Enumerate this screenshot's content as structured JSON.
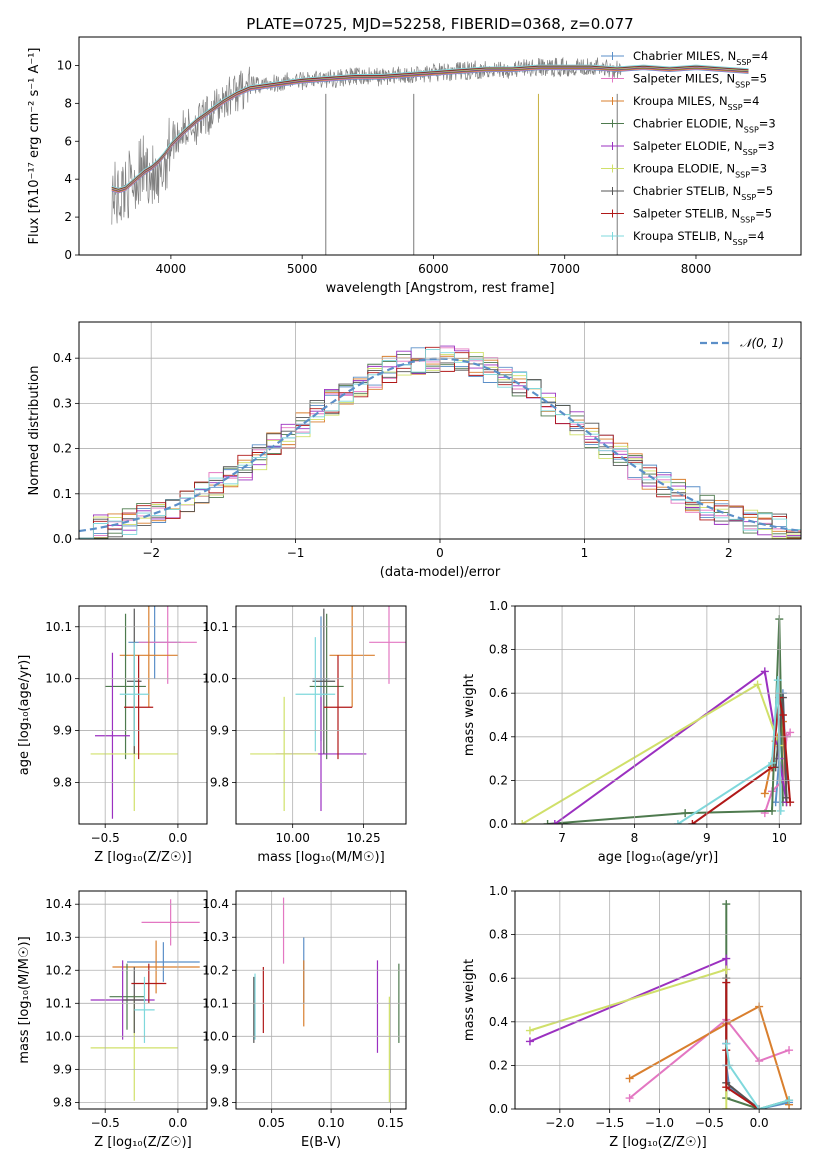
{
  "figure_title": "PLATE=0725, MJD=52258, FIBERID=0368, z=0.077",
  "model_colors": [
    "#5b8fc8",
    "#e377c2",
    "#d97f2e",
    "#4e7a4e",
    "#9b30c0",
    "#d0e06a",
    "#555555",
    "#b01818",
    "#7fd8dc"
  ],
  "models": [
    {
      "name": "Chabrier MILES",
      "nssp": "4"
    },
    {
      "name": "Salpeter MILES",
      "nssp": "5"
    },
    {
      "name": "Kroupa MILES",
      "nssp": "4"
    },
    {
      "name": "Chabrier ELODIE",
      "nssp": "3"
    },
    {
      "name": "Salpeter ELODIE",
      "nssp": "3"
    },
    {
      "name": "Kroupa ELODIE",
      "nssp": "3"
    },
    {
      "name": "Chabrier STELIB",
      "nssp": "5"
    },
    {
      "name": "Salpeter STELIB",
      "nssp": "5"
    },
    {
      "name": "Kroupa STELIB",
      "nssp": "4"
    }
  ],
  "chart_data": [
    {
      "id": "spectrum",
      "type": "line",
      "xlabel": "wavelength [Angstrom, rest frame]",
      "ylabel": "Flux [fλ10⁻¹⁷ erg cm⁻² s⁻¹ A⁻¹]",
      "xlim": [
        3300,
        8800
      ],
      "ylim": [
        0,
        11.5
      ],
      "xticks": [
        "4000",
        "5000",
        "6000",
        "7000",
        "8000"
      ],
      "yticks": [
        "0",
        "2",
        "4",
        "6",
        "8",
        "10"
      ],
      "data_color": "#808080",
      "data_x": [
        3550,
        3600,
        3650,
        3700,
        3750,
        3800,
        3850,
        3900,
        3950,
        4000,
        4100,
        4200,
        4300,
        4400,
        4500,
        4600,
        4800,
        5000,
        5200,
        5400,
        5600,
        5800,
        6000,
        6200,
        6400,
        6600,
        6800,
        7000,
        7200,
        7400,
        7600,
        7800,
        8000,
        8200,
        8400
      ],
      "data_y": [
        3.4,
        3.0,
        3.6,
        3.8,
        4.2,
        4.6,
        4.3,
        3.2,
        4.8,
        6.0,
        6.6,
        6.9,
        7.4,
        8.2,
        8.6,
        8.9,
        9.1,
        9.2,
        9.3,
        9.4,
        9.4,
        9.5,
        9.6,
        9.7,
        9.8,
        9.8,
        9.9,
        9.9,
        10.0,
        9.8,
        9.9,
        9.8,
        9.9,
        9.8,
        9.7
      ],
      "model_y": [
        3.5,
        3.4,
        3.5,
        3.8,
        4.1,
        4.4,
        4.6,
        4.9,
        5.3,
        5.8,
        6.5,
        7.1,
        7.6,
        8.1,
        8.5,
        8.8,
        9.0,
        9.2,
        9.3,
        9.4,
        9.4,
        9.5,
        9.6,
        9.7,
        9.8,
        9.8,
        9.9,
        9.9,
        9.9,
        9.8,
        9.9,
        9.8,
        9.9,
        9.8,
        9.7
      ],
      "legend_placement": "right"
    },
    {
      "id": "residuals",
      "type": "histogram",
      "xlabel": "(data-model)/error",
      "ylabel": "Normed distribution",
      "xlim": [
        -2.5,
        2.5
      ],
      "ylim": [
        0,
        0.48
      ],
      "xticks": [
        "−2",
        "−1",
        "0",
        "1",
        "2"
      ],
      "yticks": [
        "0.0",
        "0.1",
        "0.2",
        "0.3",
        "0.4"
      ],
      "reference_curve": "𝒩(0, 1)",
      "reference_color": "#5b8fc8",
      "grid": true,
      "legend_placement": "top-right"
    },
    {
      "id": "age-vs-Z",
      "type": "errorbar",
      "xlabel": "Z [log₁₀(Z/Z☉)]",
      "ylabel": "age  [log₁₀(age/yr)]",
      "xlim": [
        -0.68,
        0.2
      ],
      "ylim": [
        9.72,
        10.14
      ],
      "xticks": [
        "−0.5",
        "0.0"
      ],
      "yticks": [
        "9.8",
        "9.9",
        "10.0",
        "10.1"
      ],
      "points": [
        {
          "x": -0.16,
          "xerr": 0.18,
          "y": 10.07,
          "yerr": 0.07
        },
        {
          "x": -0.07,
          "xerr": 0.2,
          "y": 10.07,
          "yerr": 0.08
        },
        {
          "x": -0.2,
          "xerr": 0.2,
          "y": 10.045,
          "yerr": 0.1
        },
        {
          "x": -0.36,
          "xerr": 0.14,
          "y": 9.985,
          "yerr": 0.14
        },
        {
          "x": -0.45,
          "xerr": 0.12,
          "y": 9.89,
          "yerr": 0.16
        },
        {
          "x": -0.3,
          "xerr": 0.3,
          "y": 9.855,
          "yerr": 0.11
        },
        {
          "x": -0.3,
          "xerr": 0.05,
          "y": 9.995,
          "yerr": 0.14
        },
        {
          "x": -0.27,
          "xerr": 0.1,
          "y": 9.945,
          "yerr": 0.1
        },
        {
          "x": -0.3,
          "xerr": 0.1,
          "y": 9.97,
          "yerr": 0.1
        }
      ]
    },
    {
      "id": "age-vs-mass",
      "type": "errorbar",
      "xlabel": "mass [log₁₀(M/M☉)]",
      "ylabel": "",
      "xlim": [
        9.8,
        10.4
      ],
      "ylim": [
        9.72,
        10.14
      ],
      "xticks": [
        "10.00",
        "10.25"
      ],
      "yticks": [
        "9.8",
        "9.9",
        "10.0",
        "10.1"
      ],
      "points": [
        {
          "x": 10.1,
          "xerr": 0.03,
          "y": 10.0,
          "yerr": 0.12
        },
        {
          "x": 10.34,
          "xerr": 0.07,
          "y": 10.07,
          "yerr": 0.08
        },
        {
          "x": 10.21,
          "xerr": 0.08,
          "y": 10.045,
          "yerr": 0.1
        },
        {
          "x": 10.12,
          "xerr": 0.06,
          "y": 9.985,
          "yerr": 0.14
        },
        {
          "x": 10.1,
          "xerr": 0.16,
          "y": 9.855,
          "yerr": 0.11
        },
        {
          "x": 9.97,
          "xerr": 0.12,
          "y": 9.855,
          "yerr": 0.11
        },
        {
          "x": 10.11,
          "xerr": 0.04,
          "y": 9.995,
          "yerr": 0.14
        },
        {
          "x": 10.16,
          "xerr": 0.05,
          "y": 9.945,
          "yerr": 0.1
        },
        {
          "x": 10.08,
          "xerr": 0.07,
          "y": 9.97,
          "yerr": 0.11
        }
      ]
    },
    {
      "id": "weight-vs-age",
      "type": "line",
      "xlabel": "age  [log₁₀(age/yr)]",
      "ylabel": "mass weight",
      "xlim": [
        6.35,
        10.3
      ],
      "ylim": [
        0,
        1
      ],
      "xticks": [
        "7",
        "8",
        "9",
        "10"
      ],
      "yticks": [
        "0.0",
        "0.2",
        "0.4",
        "0.6",
        "0.8",
        "1.0"
      ],
      "series": [
        {
          "x": [
            9.95,
            10.0,
            10.05,
            10.1
          ],
          "y": [
            0.1,
            0.3,
            0.6,
            0.2
          ]
        },
        {
          "x": [
            9.8,
            9.9,
            10.05,
            10.1,
            10.15
          ],
          "y": [
            0.05,
            0.15,
            0.2,
            0.4,
            0.42
          ]
        },
        {
          "x": [
            9.8,
            9.95,
            10.05,
            10.1
          ],
          "y": [
            0.14,
            0.38,
            0.47,
            0.1
          ]
        },
        {
          "x": [
            6.8,
            8.7,
            9.9,
            10.0,
            10.05
          ],
          "y": [
            0.0,
            0.05,
            0.06,
            0.94,
            0.1
          ]
        },
        {
          "x": [
            6.9,
            9.8,
            10.0,
            10.1
          ],
          "y": [
            0.0,
            0.7,
            0.3,
            0.1
          ]
        },
        {
          "x": [
            6.45,
            9.7,
            10.0
          ],
          "y": [
            0.0,
            0.64,
            0.36
          ]
        },
        {
          "x": [
            9.95,
            10.05,
            10.1
          ],
          "y": [
            0.26,
            0.58,
            0.12
          ]
        },
        {
          "x": [
            8.8,
            9.9,
            10.0,
            10.05,
            10.15
          ],
          "y": [
            0.0,
            0.26,
            0.58,
            0.5,
            0.1
          ]
        },
        {
          "x": [
            8.6,
            9.9,
            9.98,
            10.02
          ],
          "y": [
            0.0,
            0.28,
            0.66,
            0.06
          ]
        }
      ]
    },
    {
      "id": "mass-vs-Z",
      "type": "errorbar",
      "xlabel": "Z [log₁₀(Z/Z☉)]",
      "ylabel": "mass [log₁₀(M/M☉)]",
      "xlim": [
        -0.68,
        0.2
      ],
      "ylim": [
        9.78,
        10.44
      ],
      "xticks": [
        "−0.5",
        "0.0"
      ],
      "yticks": [
        "9.8",
        "9.9",
        "10.0",
        "10.1",
        "10.2",
        "10.3",
        "10.4"
      ],
      "points": [
        {
          "x": -0.1,
          "xerr": 0.25,
          "y": 10.225,
          "yerr": 0.06
        },
        {
          "x": -0.05,
          "xerr": 0.2,
          "y": 10.345,
          "yerr": 0.07
        },
        {
          "x": -0.15,
          "xerr": 0.3,
          "y": 10.21,
          "yerr": 0.08
        },
        {
          "x": -0.35,
          "xerr": 0.12,
          "y": 10.12,
          "yerr": 0.1
        },
        {
          "x": -0.38,
          "xerr": 0.22,
          "y": 10.11,
          "yerr": 0.12
        },
        {
          "x": -0.3,
          "xerr": 0.3,
          "y": 9.965,
          "yerr": 0.16
        },
        {
          "x": -0.3,
          "xerr": 0.08,
          "y": 10.11,
          "yerr": 0.1
        },
        {
          "x": -0.2,
          "xerr": 0.12,
          "y": 10.16,
          "yerr": 0.06
        },
        {
          "x": -0.23,
          "xerr": 0.07,
          "y": 10.08,
          "yerr": 0.1
        }
      ]
    },
    {
      "id": "mass-vs-ebv",
      "type": "errorbar",
      "xlabel": "E(B-V)",
      "ylabel": "",
      "xlim": [
        0.02,
        0.163
      ],
      "ylim": [
        9.78,
        10.44
      ],
      "xticks": [
        "0.05",
        "0.10",
        "0.15"
      ],
      "yticks": [
        "9.8",
        "9.9",
        "10.0",
        "10.1",
        "10.2",
        "10.3",
        "10.4"
      ],
      "points": [
        {
          "x": 0.077,
          "y": 10.2,
          "yerr": 0.1
        },
        {
          "x": 0.06,
          "y": 10.32,
          "yerr": 0.1
        },
        {
          "x": 0.077,
          "y": 10.13,
          "yerr": 0.1
        },
        {
          "x": 0.157,
          "y": 10.1,
          "yerr": 0.12
        },
        {
          "x": 0.139,
          "y": 10.09,
          "yerr": 0.14
        },
        {
          "x": 0.149,
          "y": 9.96,
          "yerr": 0.16
        },
        {
          "x": 0.035,
          "y": 10.08,
          "yerr": 0.1
        },
        {
          "x": 0.043,
          "y": 10.11,
          "yerr": 0.1
        },
        {
          "x": 0.036,
          "y": 10.09,
          "yerr": 0.1
        }
      ]
    },
    {
      "id": "weight-vs-Z",
      "type": "line",
      "xlabel": "Z [log₁₀(Z/Z☉)]",
      "ylabel": "mass weight",
      "xlim": [
        -2.45,
        0.42
      ],
      "ylim": [
        0,
        1
      ],
      "xticks": [
        "−2.0",
        "−1.5",
        "−1.0",
        "−0.5",
        "0.0"
      ],
      "yticks": [
        "0.0",
        "0.2",
        "0.4",
        "0.6",
        "0.8",
        "1.0"
      ],
      "series": [
        {
          "x": [
            -0.33,
            -0.3,
            0.0,
            0.3
          ],
          "y": [
            0.2,
            0.1,
            0.0,
            0.03
          ]
        },
        {
          "x": [
            -1.3,
            -0.33,
            0.0,
            0.3
          ],
          "y": [
            0.05,
            0.41,
            0.22,
            0.27
          ]
        },
        {
          "x": [
            -1.3,
            -0.33,
            0.0,
            0.3
          ],
          "y": [
            0.14,
            0.39,
            0.47,
            0.02
          ]
        },
        {
          "x": [
            -0.33,
            -0.33,
            0.0,
            0.3
          ],
          "y": [
            0.94,
            0.05,
            0.0,
            0.04
          ]
        },
        {
          "x": [
            -2.3,
            -0.33,
            -0.33
          ],
          "y": [
            0.31,
            0.69,
            0.3
          ]
        },
        {
          "x": [
            -2.3,
            -0.33,
            -0.33
          ],
          "y": [
            0.36,
            0.64,
            0.0
          ]
        },
        {
          "x": [
            -0.33,
            -0.33,
            0.0
          ],
          "y": [
            0.6,
            0.12,
            0.0
          ]
        },
        {
          "x": [
            -0.33,
            -0.33,
            -0.33,
            0.0
          ],
          "y": [
            0.58,
            0.27,
            0.1,
            0.0
          ]
        },
        {
          "x": [
            -0.33,
            -0.3,
            0.0,
            0.3
          ],
          "y": [
            0.3,
            0.2,
            0.0,
            0.04
          ]
        }
      ]
    }
  ]
}
